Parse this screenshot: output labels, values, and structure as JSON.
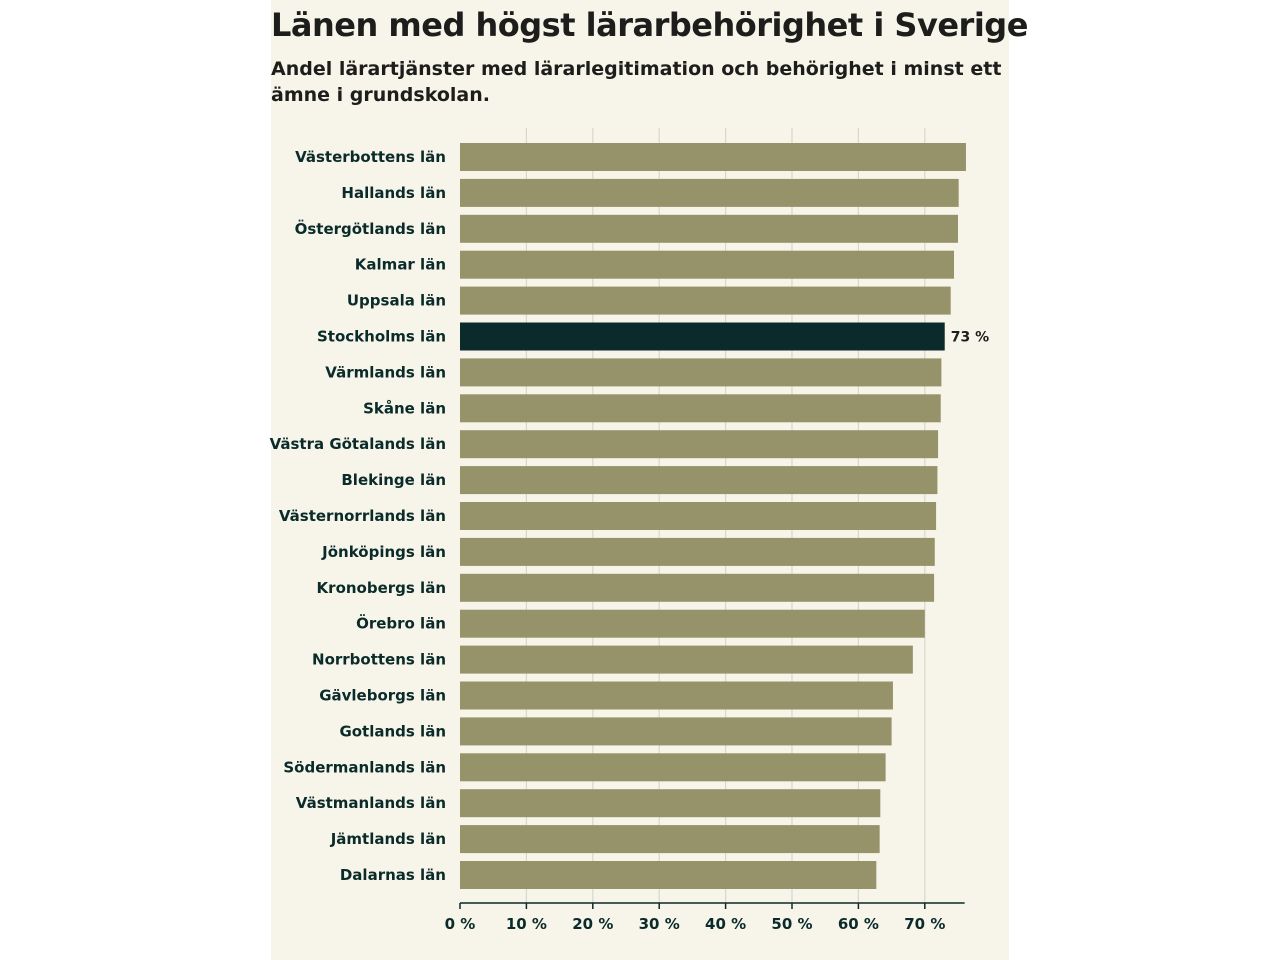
{
  "title": "Länen med högst lärarbehörighet i Sverige",
  "subtitle": "Andel lärartjänster med lärarlegitimation och behörighet i minst ett ämne i grundskolan.",
  "colors": {
    "background": "#f7f5ea",
    "bar": "#96926a",
    "highlight": "#0a2b2a",
    "grid": "#d9d6cb",
    "axis": "#0a2b2a"
  },
  "chart_data": {
    "type": "bar",
    "orientation": "horizontal",
    "title": "Länen med högst lärarbehörighet i Sverige",
    "subtitle": "Andel lärartjänster med lärarlegitimation och behörighet i minst ett ämne i grundskolan.",
    "xlabel": "",
    "ylabel": "",
    "xlim": [
      0,
      76
    ],
    "x_ticks": [
      0,
      10,
      20,
      30,
      40,
      50,
      60,
      70
    ],
    "tick_suffix": " %",
    "grid": true,
    "categories": [
      "Västerbottens län",
      "Hallands län",
      "Östergötlands län",
      "Kalmar län",
      "Uppsala län",
      "Stockholms län",
      "Värmlands län",
      "Skåne län",
      "Västra Götalands län",
      "Blekinge län",
      "Västernorrlands län",
      "Jönköpings län",
      "Kronobergs län",
      "Örebro län",
      "Norrbottens län",
      "Gävleborgs län",
      "Gotlands län",
      "Södermanlands län",
      "Västmanlands län",
      "Jämtlands län",
      "Dalarnas län"
    ],
    "values": [
      76.2,
      75.1,
      75.0,
      74.4,
      73.9,
      73.0,
      72.5,
      72.4,
      72.0,
      71.9,
      71.7,
      71.5,
      71.4,
      70.0,
      68.2,
      65.2,
      65.0,
      64.1,
      63.3,
      63.2,
      62.7
    ],
    "highlight_index": 5,
    "annotations": [
      {
        "category": "Stockholms län",
        "text": "73 %"
      }
    ]
  }
}
